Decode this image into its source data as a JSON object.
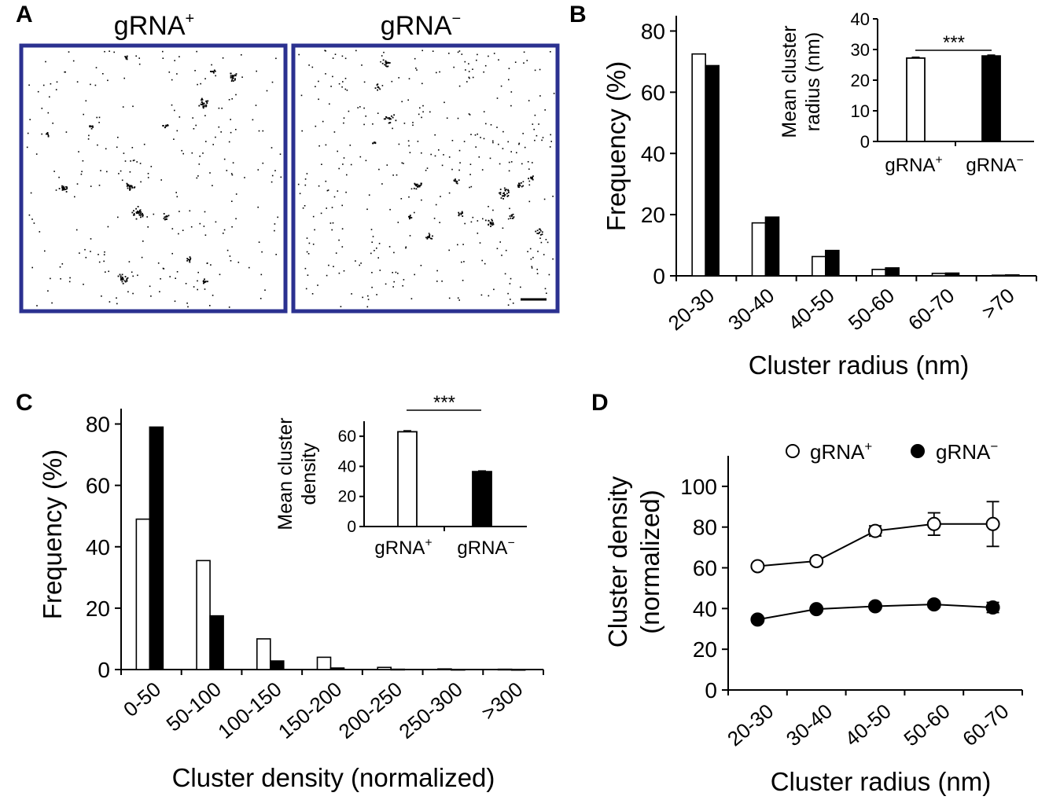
{
  "colors": {
    "frame": "#2b3190",
    "filled_bar": "#000000",
    "open_bar": "#ffffff",
    "axis": "#000000"
  },
  "panel_labels": {
    "a": "A",
    "b": "B",
    "c": "C",
    "d": "D"
  },
  "panel_a": {
    "left_title": "gRNA",
    "left_sup": "+",
    "right_title": "gRNA",
    "right_sup": "−"
  },
  "chart_data": [
    {
      "panel": "B",
      "type": "bar",
      "xlabel": "Cluster radius (nm)",
      "ylabel": "Frequency (%)",
      "ylim": [
        0,
        85
      ],
      "yticks": [
        0,
        20,
        40,
        60,
        80
      ],
      "categories": [
        "20-30",
        "30-40",
        "40-50",
        "50-60",
        "60-70",
        ">70"
      ],
      "series": [
        {
          "name": "gRNA+",
          "fill": "open",
          "values": [
            72.5,
            17.3,
            6.3,
            2.1,
            0.8,
            0.2
          ]
        },
        {
          "name": "gRNA−",
          "fill": "filled",
          "values": [
            68.7,
            19.2,
            8.3,
            2.6,
            0.9,
            0.3
          ]
        }
      ],
      "inset": {
        "type": "bar",
        "ylabel": "Mean cluster radius (nm)",
        "ylim": [
          0,
          40
        ],
        "yticks": [
          0,
          10,
          20,
          30,
          40
        ],
        "categories": [
          "gRNA+",
          "gRNA−"
        ],
        "values": [
          27.2,
          27.9
        ],
        "errors": [
          0.3,
          0.3
        ],
        "significance": "***"
      }
    },
    {
      "panel": "C",
      "type": "bar",
      "xlabel": "Cluster density (normalized)",
      "ylabel": "Frequency (%)",
      "ylim": [
        0,
        85
      ],
      "yticks": [
        0,
        20,
        40,
        60,
        80
      ],
      "categories": [
        "0-50",
        "50-100",
        "100-150",
        "150-200",
        "200-250",
        "250-300",
        ">300"
      ],
      "series": [
        {
          "name": "gRNA+",
          "fill": "open",
          "values": [
            49.0,
            35.5,
            10.0,
            4.0,
            0.7,
            0.2,
            0.1
          ]
        },
        {
          "name": "gRNA−",
          "fill": "filled",
          "values": [
            79.0,
            17.5,
            2.8,
            0.5,
            0.1,
            0.05,
            0.02
          ]
        }
      ],
      "inset": {
        "type": "bar",
        "ylabel": "Mean cluster density",
        "ylim": [
          0,
          70
        ],
        "yticks": [
          0,
          20,
          40,
          60
        ],
        "categories": [
          "gRNA+",
          "gRNA−"
        ],
        "values": [
          63.0,
          36.5
        ],
        "errors": [
          0.7,
          0.5
        ],
        "significance": "***"
      }
    },
    {
      "panel": "D",
      "type": "line",
      "xlabel": "Cluster radius (nm)",
      "ylabel_line1": "Cluster density",
      "ylabel_line2": "(normalized)",
      "ylim": [
        0,
        115
      ],
      "yticks": [
        0,
        20,
        40,
        60,
        80,
        100
      ],
      "categories": [
        "20-30",
        "30-40",
        "40-50",
        "50-60",
        "60-70"
      ],
      "series": [
        {
          "name": "gRNA+",
          "marker": "open",
          "values": [
            60.8,
            63.3,
            78.1,
            81.5,
            81.5
          ],
          "errors": [
            1.0,
            1.5,
            2.5,
            5.5,
            11.0
          ]
        },
        {
          "name": "gRNA−",
          "marker": "filled",
          "values": [
            34.6,
            39.7,
            41.1,
            42.0,
            40.5
          ],
          "errors": [
            0.5,
            0.6,
            1.0,
            1.5,
            2.5
          ]
        }
      ],
      "legend": {
        "position": "top"
      }
    }
  ]
}
